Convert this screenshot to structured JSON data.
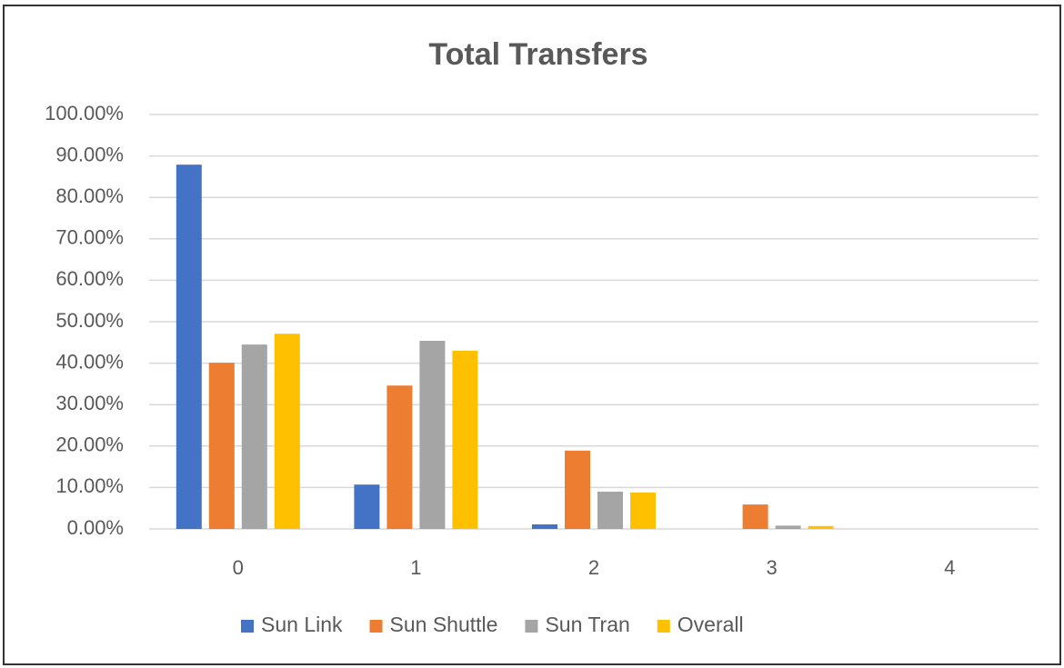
{
  "chart_data": {
    "type": "bar",
    "title": "Total Transfers",
    "categories": [
      "0",
      "1",
      "2",
      "3",
      "4"
    ],
    "series": [
      {
        "name": "Sun Link",
        "color": "#4472c4",
        "values": [
          87.9,
          10.7,
          1.1,
          0,
          0
        ]
      },
      {
        "name": "Sun Shuttle",
        "color": "#ed7d31",
        "values": [
          40.1,
          34.6,
          18.9,
          5.9,
          0
        ]
      },
      {
        "name": "Sun Tran",
        "color": "#a5a5a5",
        "values": [
          44.5,
          45.4,
          9,
          0.8,
          0
        ]
      },
      {
        "name": "Overall",
        "color": "#ffc000",
        "values": [
          47.1,
          43,
          8.8,
          0.7,
          0
        ]
      }
    ],
    "ylim": [
      0,
      100
    ],
    "yticks": [
      {
        "value": 0,
        "label": "0.00%"
      },
      {
        "value": 10,
        "label": "10.00%"
      },
      {
        "value": 20,
        "label": "20.00%"
      },
      {
        "value": 30,
        "label": "30.00%"
      },
      {
        "value": 40,
        "label": "40.00%"
      },
      {
        "value": 50,
        "label": "50.00%"
      },
      {
        "value": 60,
        "label": "60.00%"
      },
      {
        "value": 70,
        "label": "70.00%"
      },
      {
        "value": 80,
        "label": "80.00%"
      },
      {
        "value": 90,
        "label": "90.00%"
      },
      {
        "value": 100,
        "label": "100.00%"
      }
    ],
    "grid": true,
    "legend": "bottom"
  }
}
